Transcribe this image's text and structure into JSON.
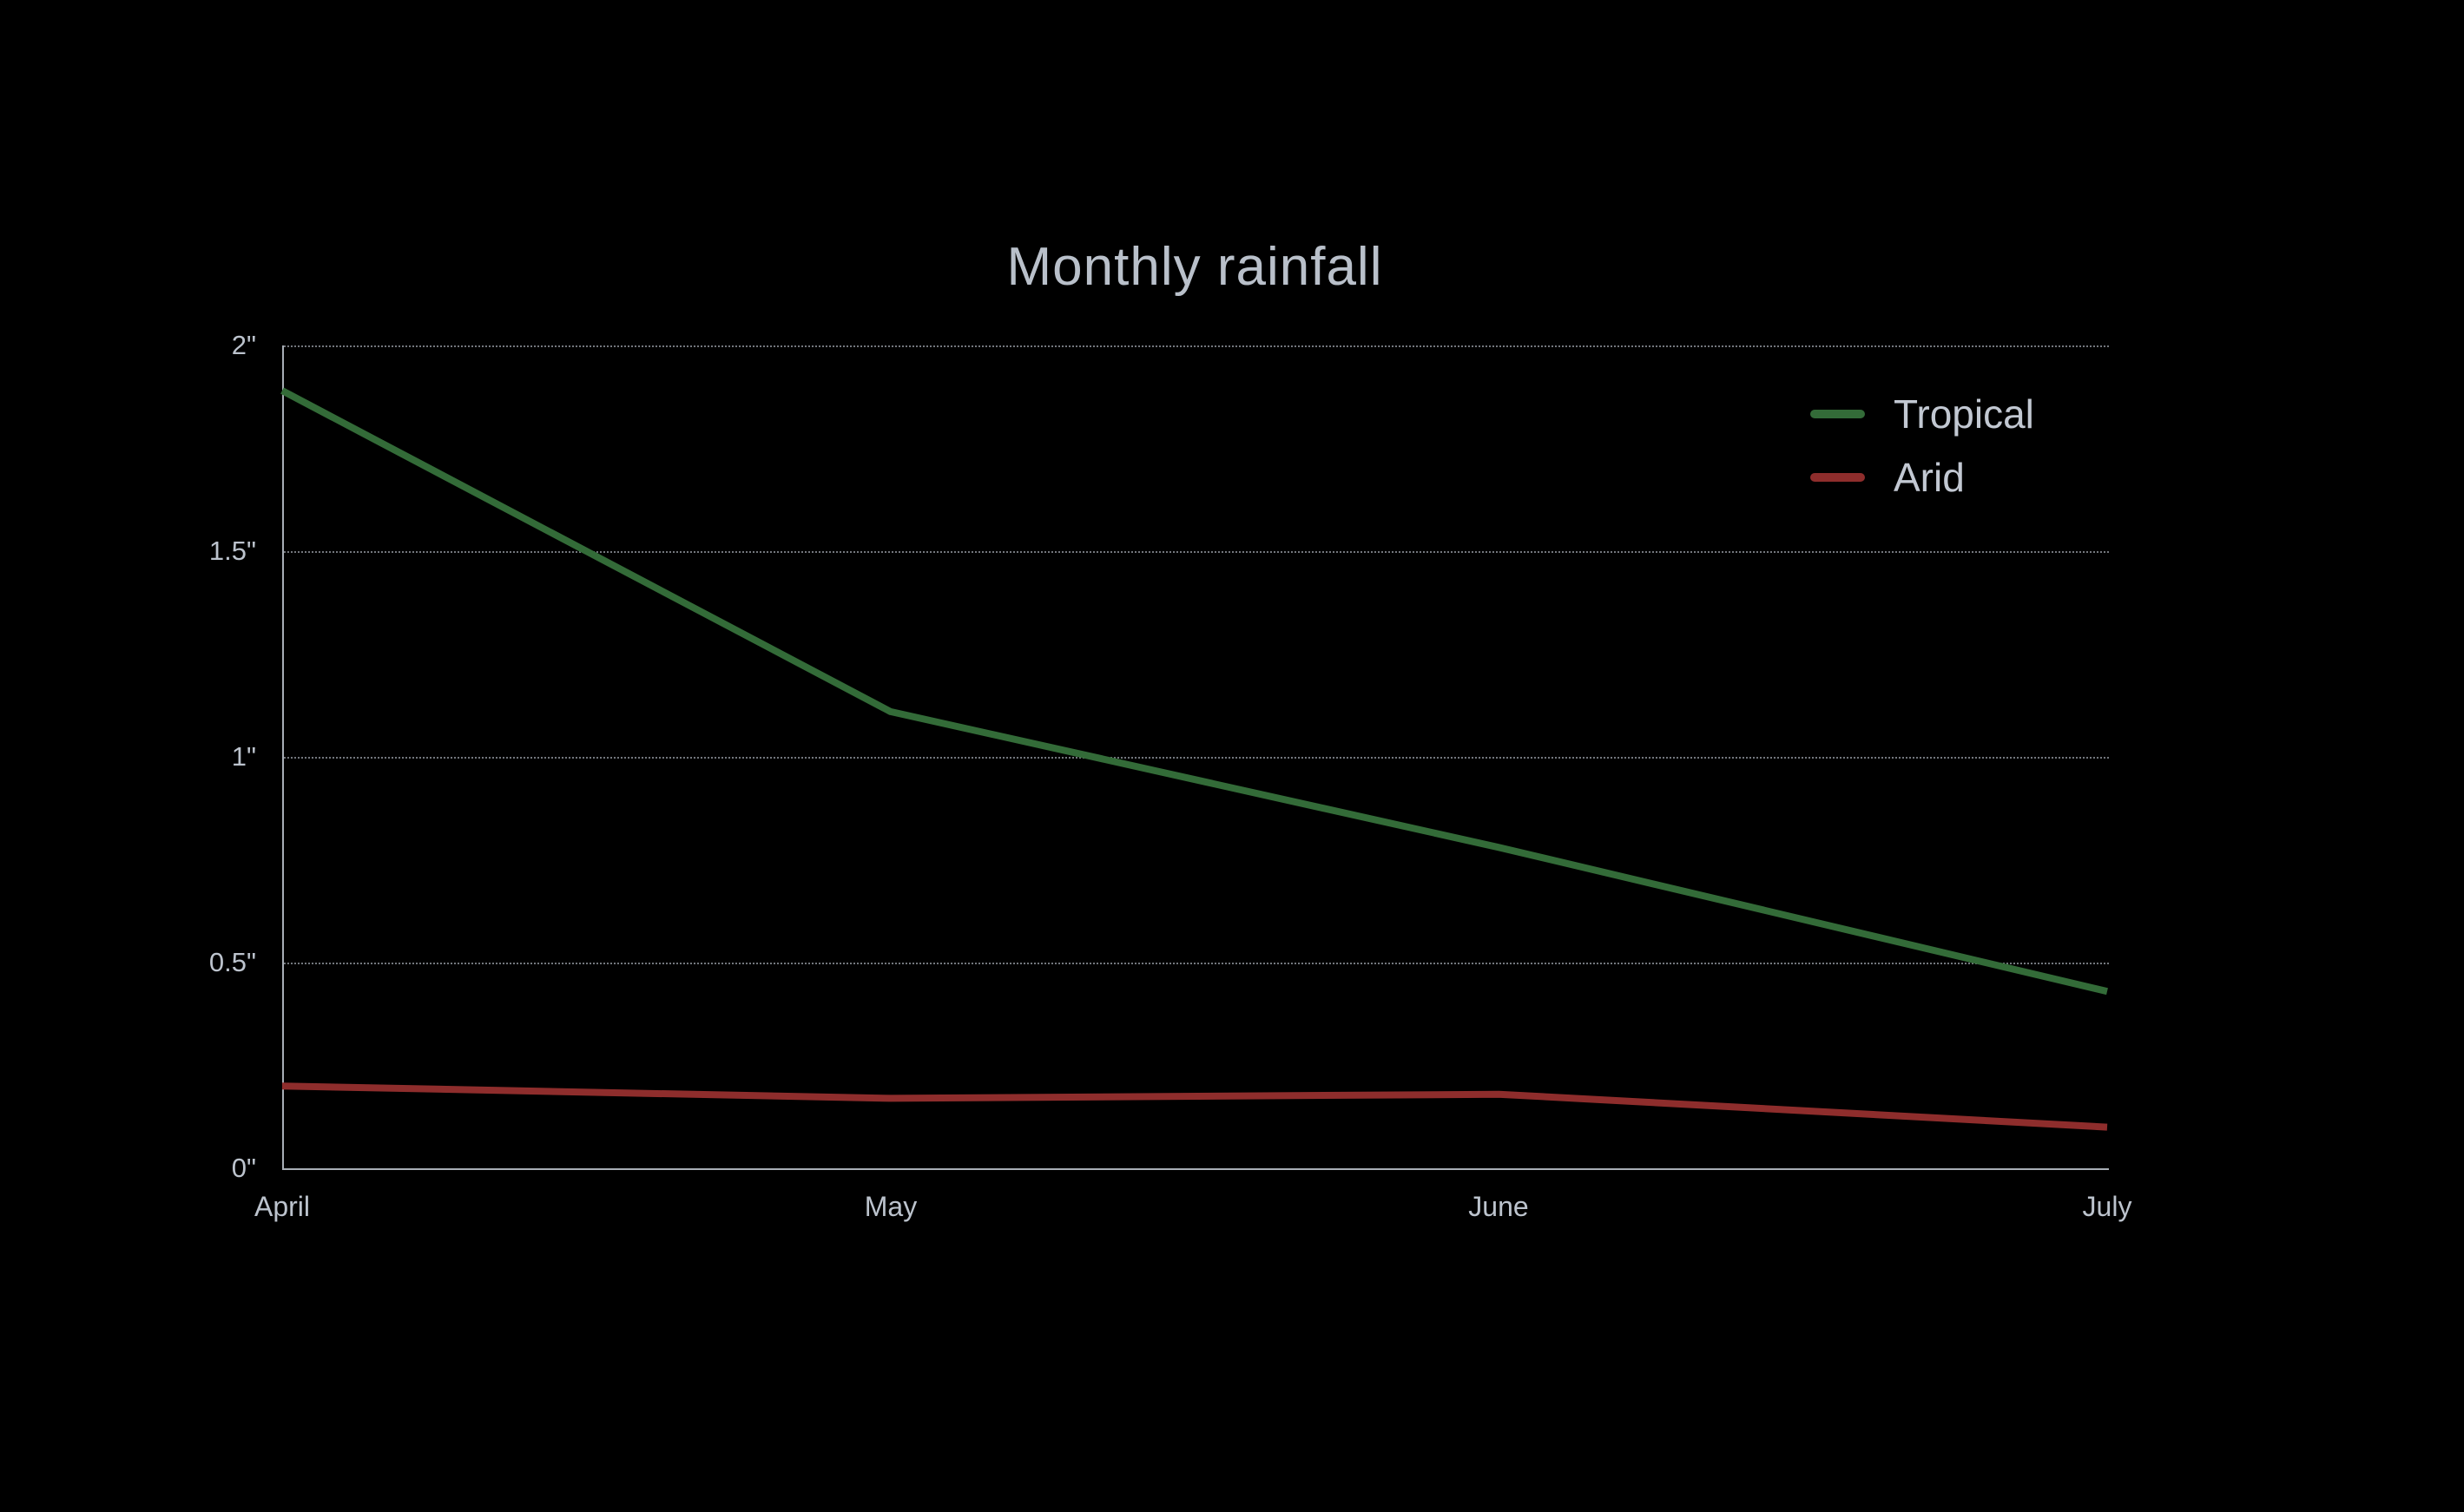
{
  "title": "Monthly rainfall",
  "colors": {
    "background": "#000000",
    "text": "#bcc3cd",
    "axis_line": "#a8aeb6",
    "gridline": "#73777d",
    "tropical": "#336b38",
    "arid": "#8e2d2c"
  },
  "legend": {
    "position": "top-right",
    "items": [
      {
        "label": "Tropical"
      },
      {
        "label": "Arid"
      }
    ]
  },
  "chart_data": {
    "type": "line",
    "title": "Monthly rainfall",
    "categories": [
      "April",
      "May",
      "June",
      "July"
    ],
    "series": [
      {
        "name": "Tropical",
        "color": "#336b38",
        "values": [
          1.89,
          1.11,
          0.78,
          0.43
        ]
      },
      {
        "name": "Arid",
        "color": "#8e2d2c",
        "values": [
          0.2,
          0.17,
          0.18,
          0.1
        ]
      }
    ],
    "xlabel": "",
    "ylabel": "",
    "ylim": [
      0,
      2
    ],
    "y_ticks": [
      0,
      0.5,
      1,
      1.5,
      2
    ],
    "y_tick_labels": [
      "0\"",
      "0.5\"",
      "1\"",
      "1.5\"",
      "2\""
    ],
    "grid": "horizontal-dotted",
    "legend_position": "top-right",
    "background": "black"
  }
}
